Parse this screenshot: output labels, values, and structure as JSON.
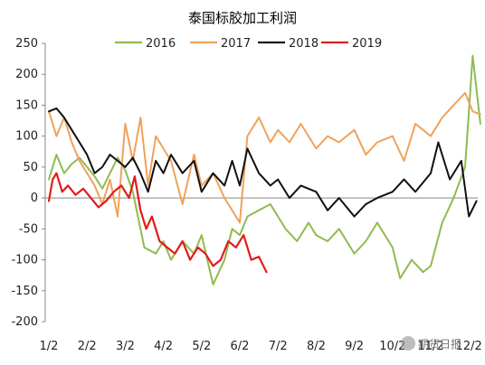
{
  "chart_data": {
    "type": "line",
    "title": "泰国标胶加工利润",
    "xlabel": "",
    "ylabel": "",
    "ylim": [
      -200,
      250
    ],
    "yticks": [
      -200,
      -150,
      -100,
      -50,
      0,
      50,
      100,
      150,
      200,
      250
    ],
    "x_tick_labels": [
      "1/2",
      "2/2",
      "3/2",
      "4/2",
      "5/2",
      "6/2",
      "7/2",
      "8/2",
      "9/2",
      "10/2",
      "11/2",
      "12/2"
    ],
    "x_unit": "month index (0 = 1/2, 11 = 12/2)",
    "xlim": [
      0,
      11.3
    ],
    "grid": false,
    "legend": "top",
    "series": [
      {
        "name": "2016",
        "color": "#8fbb4f",
        "x": [
          0,
          0.2,
          0.4,
          0.6,
          0.8,
          1.0,
          1.2,
          1.4,
          1.6,
          1.8,
          2.0,
          2.2,
          2.5,
          2.8,
          3.0,
          3.2,
          3.5,
          3.8,
          4.0,
          4.3,
          4.6,
          4.8,
          5.0,
          5.2,
          5.5,
          5.8,
          6.0,
          6.2,
          6.5,
          6.8,
          7.0,
          7.3,
          7.6,
          8.0,
          8.3,
          8.6,
          9.0,
          9.2,
          9.5,
          9.8,
          10.0,
          10.3,
          10.6,
          10.9,
          11.1,
          11.3
        ],
        "values": [
          30,
          70,
          40,
          55,
          65,
          50,
          35,
          15,
          40,
          65,
          45,
          10,
          -80,
          -90,
          -70,
          -100,
          -70,
          -90,
          -60,
          -140,
          -100,
          -50,
          -60,
          -30,
          -20,
          -10,
          -30,
          -50,
          -70,
          -40,
          -60,
          -70,
          -50,
          -90,
          -70,
          -40,
          -80,
          -130,
          -100,
          -120,
          -110,
          -40,
          0,
          50,
          230,
          120
        ]
      },
      {
        "name": "2017",
        "color": "#f0a25a",
        "x": [
          0,
          0.2,
          0.4,
          0.6,
          0.8,
          1.0,
          1.2,
          1.4,
          1.6,
          1.8,
          2.0,
          2.2,
          2.4,
          2.6,
          2.8,
          3.0,
          3.2,
          3.5,
          3.8,
          4.0,
          4.3,
          4.6,
          4.8,
          5.0,
          5.2,
          5.5,
          5.8,
          6.0,
          6.3,
          6.6,
          7.0,
          7.3,
          7.6,
          8.0,
          8.3,
          8.6,
          9.0,
          9.3,
          9.6,
          10.0,
          10.3,
          10.6,
          10.9,
          11.1,
          11.3
        ],
        "values": [
          140,
          100,
          130,
          90,
          60,
          40,
          20,
          -10,
          30,
          -30,
          120,
          60,
          130,
          20,
          100,
          80,
          60,
          -10,
          70,
          20,
          40,
          0,
          -20,
          -40,
          100,
          130,
          90,
          110,
          90,
          120,
          80,
          100,
          90,
          110,
          70,
          90,
          100,
          60,
          120,
          100,
          130,
          150,
          170,
          140,
          135
        ]
      },
      {
        "name": "2018",
        "color": "#111111",
        "x": [
          0,
          0.2,
          0.4,
          0.6,
          0.8,
          1.0,
          1.2,
          1.4,
          1.6,
          1.8,
          2.0,
          2.2,
          2.4,
          2.6,
          2.8,
          3.0,
          3.2,
          3.5,
          3.8,
          4.0,
          4.3,
          4.6,
          4.8,
          5.0,
          5.2,
          5.5,
          5.8,
          6.0,
          6.3,
          6.6,
          7.0,
          7.3,
          7.6,
          8.0,
          8.3,
          8.6,
          9.0,
          9.3,
          9.6,
          10.0,
          10.2,
          10.5,
          10.8,
          11.0,
          11.2
        ],
        "values": [
          140,
          145,
          130,
          110,
          90,
          70,
          40,
          50,
          70,
          60,
          50,
          65,
          40,
          10,
          60,
          40,
          70,
          40,
          60,
          10,
          40,
          20,
          60,
          20,
          80,
          40,
          20,
          30,
          0,
          20,
          10,
          -20,
          0,
          -30,
          -10,
          0,
          10,
          30,
          10,
          40,
          90,
          30,
          60,
          -30,
          -5
        ]
      },
      {
        "name": "2019",
        "color": "#e21b1b",
        "x": [
          0,
          0.1,
          0.2,
          0.35,
          0.5,
          0.7,
          0.9,
          1.1,
          1.3,
          1.5,
          1.7,
          1.9,
          2.1,
          2.25,
          2.4,
          2.55,
          2.7,
          2.9,
          3.1,
          3.3,
          3.5,
          3.7,
          3.9,
          4.1,
          4.3,
          4.5,
          4.7,
          4.9,
          5.1,
          5.3,
          5.5,
          5.7
        ],
        "values": [
          -5,
          30,
          40,
          10,
          20,
          5,
          15,
          0,
          -15,
          -5,
          10,
          20,
          0,
          35,
          -20,
          -50,
          -30,
          -70,
          -80,
          -90,
          -70,
          -100,
          -80,
          -90,
          -110,
          -100,
          -70,
          -80,
          -60,
          -100,
          -95,
          -120
        ]
      }
    ]
  },
  "watermark": "期货日报"
}
